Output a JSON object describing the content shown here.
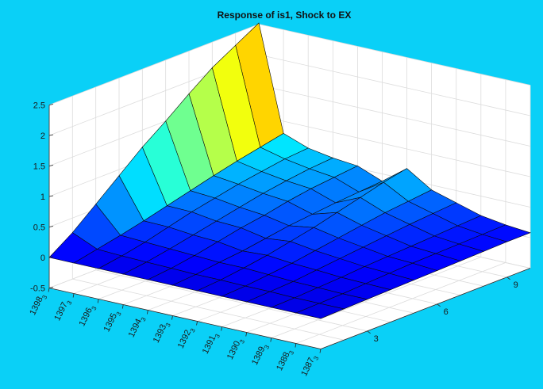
{
  "figure": {
    "background_color": "#0ad0f7",
    "axes_background": "#ffffff",
    "grid": true
  },
  "chart_data": {
    "type": "surface",
    "title": "Response of is1, Shock to EX",
    "xlabel": "",
    "ylabel": "",
    "zlabel": "",
    "colormap": "jet",
    "zlim": [
      -0.5,
      2.5
    ],
    "z_ticks": [
      -0.5,
      0,
      0.5,
      1,
      1.5,
      2,
      2.5
    ],
    "z_tick_labels": [
      "-0.5",
      "0",
      "0.5",
      "1",
      "1.5",
      "2",
      "2.5"
    ],
    "date_axis_ticks": [
      {
        "year": "1398",
        "sub": "3"
      },
      {
        "year": "1397",
        "sub": "3"
      },
      {
        "year": "1396",
        "sub": "3"
      },
      {
        "year": "1395",
        "sub": "3"
      },
      {
        "year": "1394",
        "sub": "3"
      },
      {
        "year": "1393",
        "sub": "3"
      },
      {
        "year": "1392",
        "sub": "3"
      },
      {
        "year": "1391",
        "sub": "3"
      },
      {
        "year": "1390",
        "sub": "3"
      },
      {
        "year": "1389",
        "sub": "3"
      },
      {
        "year": "1388",
        "sub": "3"
      },
      {
        "year": "1387",
        "sub": "3"
      }
    ],
    "horizon_ticks": [
      3,
      6,
      9
    ],
    "horizon_tick_labels": [
      "3",
      "6",
      "9"
    ],
    "horizon_range": [
      1,
      10
    ],
    "series": [
      {
        "name": "",
        "values": [
          0,
          0.26,
          0.58,
          0.9,
          1.22,
          1.5,
          1.8,
          2.08,
          2.3,
          2.52
        ]
      },
      {
        "name": "",
        "values": [
          0,
          0.08,
          0.16,
          0.25,
          0.35,
          0.45,
          0.55,
          0.64,
          0.72,
          0.8
        ]
      },
      {
        "name": "",
        "values": [
          0,
          0.06,
          0.14,
          0.24,
          0.34,
          0.42,
          0.5,
          0.56,
          0.62,
          0.65
        ]
      },
      {
        "name": "",
        "values": [
          0,
          0.05,
          0.12,
          0.2,
          0.28,
          0.36,
          0.44,
          0.5,
          0.55,
          0.58
        ]
      },
      {
        "name": "",
        "values": [
          0,
          0.04,
          0.1,
          0.18,
          0.26,
          0.32,
          0.4,
          0.46,
          0.5,
          0.54
        ]
      },
      {
        "name": "",
        "values": [
          0,
          0.03,
          0.08,
          0.12,
          0.18,
          0.24,
          0.28,
          0.32,
          0.35,
          0.38
        ]
      },
      {
        "name": "",
        "values": [
          0,
          0.03,
          0.08,
          0.14,
          0.22,
          0.3,
          0.4,
          0.5,
          0.6,
          0.68
        ]
      },
      {
        "name": "",
        "values": [
          0,
          0.02,
          0.06,
          0.1,
          0.16,
          0.22,
          0.28,
          0.34,
          0.38,
          0.42
        ]
      },
      {
        "name": "",
        "values": [
          0,
          0.02,
          0.04,
          0.08,
          0.12,
          0.16,
          0.2,
          0.24,
          0.27,
          0.3
        ]
      },
      {
        "name": "",
        "values": [
          0,
          0.01,
          0.03,
          0.05,
          0.08,
          0.1,
          0.12,
          0.14,
          0.16,
          0.18
        ]
      },
      {
        "name": "",
        "values": [
          0,
          0.01,
          0.02,
          0.04,
          0.06,
          0.08,
          0.09,
          0.1,
          0.11,
          0.12
        ]
      },
      {
        "name": "",
        "values": [
          0,
          0.01,
          0.02,
          0.03,
          0.04,
          0.05,
          0.06,
          0.07,
          0.08,
          0.08
        ]
      }
    ]
  }
}
